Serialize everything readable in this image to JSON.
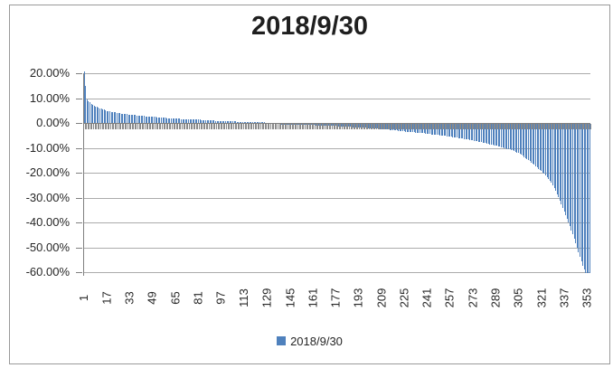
{
  "window": {
    "background": "#FFFFFF",
    "border_color": "#9A9A9A"
  },
  "chart": {
    "title": "2018/9/30",
    "legend": {
      "label": "2018/9/30",
      "swatch_color": "#4F81BD"
    },
    "colors": {
      "bar": "#4F81BD",
      "gridline": "#ABABAB",
      "axis": "#808080",
      "text": "#262626",
      "title_text": "#1F1F1F"
    }
  },
  "chart_data": {
    "type": "bar",
    "title": "2018/9/30",
    "series_name": "2018/9/30",
    "unit": "%",
    "ylim": [
      -60,
      20
    ],
    "grid": true,
    "legend_position": "bottom",
    "y_ticks_pct": [
      20,
      10,
      0,
      -10,
      -20,
      -30,
      -40,
      -50,
      -60
    ],
    "y_tick_labels": [
      "20.00%",
      "10.00%",
      "0.00%",
      "-10.00%",
      "-20.00%",
      "-30.00%",
      "-40.00%",
      "-50.00%",
      "-60.00%"
    ],
    "x_tick_labels": [
      "1",
      "17",
      "33",
      "49",
      "65",
      "81",
      "97",
      "113",
      "129",
      "145",
      "161",
      "177",
      "193",
      "209",
      "225",
      "241",
      "257",
      "273",
      "289",
      "305",
      "321",
      "337",
      "353"
    ],
    "x_label_interval": 16,
    "n_categories": 355,
    "values_pct": [
      20.7,
      14.8,
      9.6,
      8.9,
      8.3,
      7.8,
      7.4,
      7.0,
      6.7,
      6.4,
      6.1,
      5.9,
      5.7,
      5.5,
      5.3,
      5.1,
      4.9,
      4.8,
      4.6,
      4.5,
      4.4,
      4.3,
      4.2,
      4.1,
      4.0,
      3.9,
      3.8,
      3.7,
      3.6,
      3.5,
      3.5,
      3.4,
      3.3,
      3.3,
      3.2,
      3.1,
      3.1,
      3.0,
      3.0,
      2.9,
      2.9,
      2.8,
      2.8,
      2.7,
      2.6,
      2.6,
      2.5,
      2.5,
      2.4,
      2.4,
      2.4,
      2.3,
      2.3,
      2.2,
      2.2,
      2.2,
      2.1,
      2.1,
      2.0,
      2.0,
      2.0,
      1.9,
      1.9,
      1.8,
      1.8,
      1.8,
      1.7,
      1.7,
      1.6,
      1.6,
      1.6,
      1.6,
      1.5,
      1.5,
      1.5,
      1.5,
      1.4,
      1.4,
      1.3,
      1.3,
      1.3,
      1.3,
      1.2,
      1.2,
      1.2,
      1.2,
      1.1,
      1.1,
      1.0,
      1.0,
      1.0,
      1.0,
      0.9,
      0.9,
      0.9,
      0.9,
      0.9,
      0.8,
      0.8,
      0.8,
      0.8,
      0.7,
      0.7,
      0.6,
      0.6,
      0.6,
      0.6,
      0.5,
      0.5,
      0.5,
      0.5,
      0.5,
      0.4,
      0.4,
      0.4,
      0.4,
      0.4,
      0.3,
      0.3,
      0.3,
      0.3,
      0.3,
      0.2,
      0.2,
      0.2,
      0.2,
      0.2,
      0.1,
      0.1,
      0.1,
      0.1,
      0.1,
      0.0,
      0.0,
      0.0,
      0.0,
      0.0,
      -0.1,
      -0.1,
      -0.1,
      -0.1,
      -0.1,
      -0.2,
      -0.2,
      -0.2,
      -0.2,
      -0.2,
      -0.3,
      -0.3,
      -0.3,
      -0.3,
      -0.3,
      -0.4,
      -0.4,
      -0.4,
      -0.4,
      -0.4,
      -0.5,
      -0.5,
      -0.5,
      -0.5,
      -0.5,
      -0.6,
      -0.6,
      -0.6,
      -0.6,
      -0.6,
      -0.7,
      -0.7,
      -0.7,
      -0.7,
      -0.8,
      -0.8,
      -0.8,
      -0.9,
      -0.9,
      -0.9,
      -0.9,
      -1.0,
      -1.0,
      -1.0,
      -1.1,
      -1.1,
      -1.1,
      -1.2,
      -1.2,
      -1.2,
      -1.2,
      -1.3,
      -1.3,
      -1.3,
      -1.4,
      -1.4,
      -1.5,
      -1.5,
      -1.5,
      -1.6,
      -1.6,
      -1.7,
      -1.7,
      -1.7,
      -1.8,
      -1.8,
      -1.9,
      -1.9,
      -1.9,
      -2.0,
      -2.0,
      -2.1,
      -2.1,
      -2.2,
      -2.2,
      -2.3,
      -2.3,
      -2.4,
      -2.5,
      -2.5,
      -2.6,
      -2.6,
      -2.7,
      -2.8,
      -2.8,
      -2.9,
      -2.9,
      -3.0,
      -3.1,
      -3.1,
      -3.2,
      -3.2,
      -3.3,
      -3.4,
      -3.4,
      -3.5,
      -3.5,
      -3.6,
      -3.7,
      -3.7,
      -3.8,
      -3.8,
      -3.9,
      -4.0,
      -4.0,
      -4.1,
      -4.2,
      -4.3,
      -4.3,
      -4.4,
      -4.5,
      -4.5,
      -4.6,
      -4.7,
      -4.8,
      -4.8,
      -4.9,
      -5.0,
      -5.1,
      -5.2,
      -5.2,
      -5.3,
      -5.4,
      -5.5,
      -5.6,
      -5.7,
      -5.8,
      -5.9,
      -5.9,
      -6.0,
      -6.1,
      -6.2,
      -6.3,
      -6.4,
      -6.5,
      -6.7,
      -6.8,
      -6.9,
      -7.0,
      -7.1,
      -7.3,
      -7.4,
      -7.5,
      -7.6,
      -7.8,
      -7.9,
      -8.1,
      -8.2,
      -8.3,
      -8.5,
      -8.6,
      -8.8,
      -8.9,
      -9.1,
      -9.2,
      -9.4,
      -9.5,
      -9.7,
      -9.9,
      -10.0,
      -10.2,
      -10.3,
      -10.5,
      -10.6,
      -10.9,
      -11.2,
      -11.5,
      -11.8,
      -12.1,
      -12.5,
      -12.9,
      -13.3,
      -13.7,
      -14.1,
      -14.5,
      -15.0,
      -15.5,
      -16.0,
      -16.5,
      -17.0,
      -17.5,
      -18.0,
      -18.5,
      -19.0,
      -19.5,
      -20.0,
      -20.6,
      -21.3,
      -22.0,
      -22.8,
      -23.7,
      -24.7,
      -25.8,
      -27.0,
      -28.3,
      -29.6,
      -31.0,
      -32.4,
      -33.8,
      -35.2,
      -36.6,
      -38.1,
      -39.6,
      -41.2,
      -42.8,
      -44.5,
      -46.2,
      -48.0,
      -49.8,
      -51.6,
      -53.4,
      -55.2,
      -57.0,
      -58.5,
      -60.0,
      -60.0,
      -60.0,
      -60.0
    ]
  }
}
